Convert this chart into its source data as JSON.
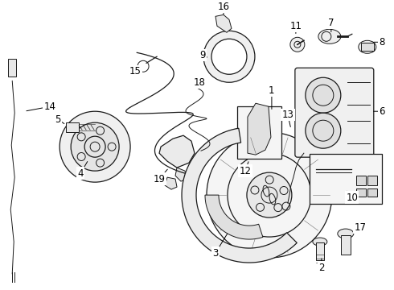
{
  "background_color": "#ffffff",
  "line_color": "#1a1a1a",
  "label_color": "#000000",
  "label_fontsize": 8.5,
  "fig_width": 4.9,
  "fig_height": 3.6,
  "dpi": 100
}
